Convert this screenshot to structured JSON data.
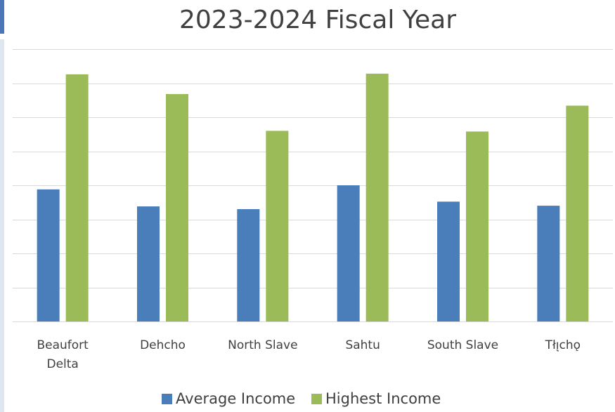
{
  "chart_data": {
    "type": "bar",
    "title": "2023-2024 Fiscal Year",
    "categories": [
      [
        "Beaufort",
        "Delta"
      ],
      [
        "Dehcho"
      ],
      [
        "North Slave"
      ],
      [
        "Sahtu"
      ],
      [
        "South Slave"
      ],
      [
        "Tłı̨chǫ"
      ]
    ],
    "series": [
      {
        "name": "Average Income",
        "color": "#4a7ebb",
        "values": [
          38.8,
          33.8,
          33.0,
          40.0,
          35.2,
          34.0
        ]
      },
      {
        "name": "Highest Income",
        "color": "#9bbb59",
        "values": [
          72.6,
          66.8,
          56.0,
          72.8,
          55.8,
          63.4
        ]
      }
    ],
    "ylim": [
      0,
      80
    ],
    "y_gridlines": 8,
    "grid": true,
    "show_y_tick_labels": false,
    "legend_position": "bottom",
    "xlabel": "",
    "ylabel": ""
  }
}
